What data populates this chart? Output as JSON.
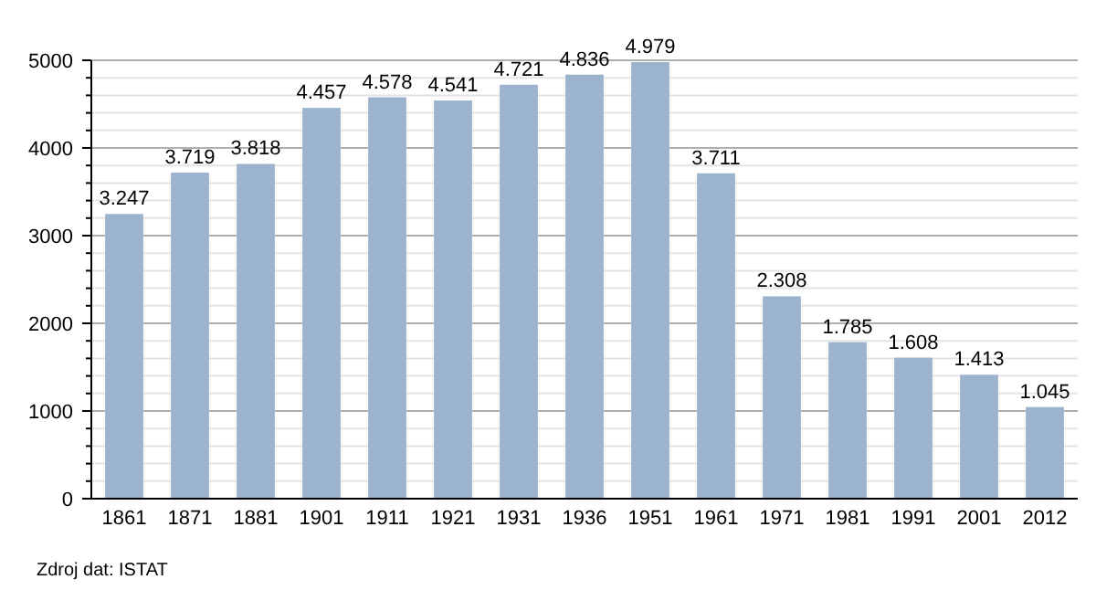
{
  "chart_data": {
    "type": "bar",
    "categories": [
      "1861",
      "1871",
      "1881",
      "1901",
      "1911",
      "1921",
      "1931",
      "1936",
      "1951",
      "1961",
      "1971",
      "1981",
      "1991",
      "2001",
      "2012"
    ],
    "values": [
      3247,
      3719,
      3818,
      4457,
      4578,
      4541,
      4721,
      4836,
      4979,
      3711,
      2308,
      1785,
      1608,
      1413,
      1045
    ],
    "value_labels": [
      "3.247",
      "3.719",
      "3.818",
      "4.457",
      "4.578",
      "4.541",
      "4.721",
      "4.836",
      "4.979",
      "3.711",
      "2.308",
      "1.785",
      "1.608",
      "1.413",
      "1.045"
    ],
    "color": "#9bb3cc",
    "ylim": [
      0,
      5000
    ],
    "yticks": [
      0,
      {
        "value": 200,
        "label": null
      },
      {
        "value": 400,
        "label": null
      },
      {
        "value": 600,
        "label": null
      },
      {
        "value": 800,
        "label": null
      },
      1000,
      {
        "value": 1200,
        "label": null
      },
      {
        "value": 1400,
        "label": null
      },
      {
        "value": 1600,
        "label": null
      },
      {
        "value": 1800,
        "label": null
      },
      2000,
      {
        "value": 2200,
        "label": null
      },
      {
        "value": 2400,
        "label": null
      },
      {
        "value": 2600,
        "label": null
      },
      {
        "value": 2800,
        "label": null
      },
      3000,
      {
        "value": 3200,
        "label": null
      },
      {
        "value": 3400,
        "label": null
      },
      {
        "value": 3600,
        "label": null
      },
      {
        "value": 3800,
        "label": null
      },
      4000,
      {
        "value": 4200,
        "label": null
      },
      {
        "value": 4400,
        "label": null
      },
      {
        "value": 4600,
        "label": null
      },
      {
        "value": 4800,
        "label": null
      },
      5000
    ],
    "grid": "y",
    "annotations": [
      "Zdroj dat: ISTAT"
    ]
  }
}
